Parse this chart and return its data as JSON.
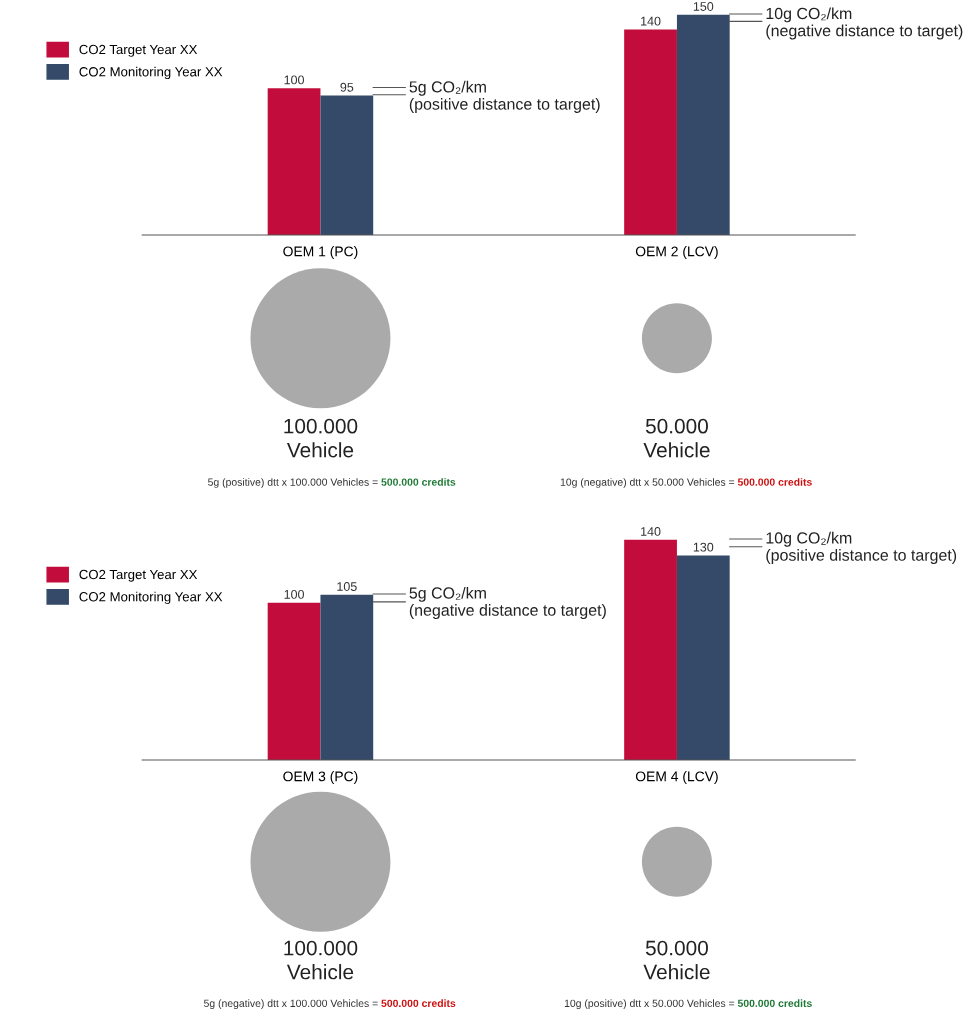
{
  "chart_data": [
    {
      "type": "bar",
      "categories": [
        "OEM 1 (PC)",
        "OEM 2 (LCV)"
      ],
      "series": [
        {
          "name": "CO2 Target Year XX",
          "color": "#c20c3b",
          "values": [
            100,
            140
          ]
        },
        {
          "name": "CO2 Monitoring Year XX",
          "color": "#354a69",
          "values": [
            95,
            150
          ]
        }
      ],
      "tick_labels": "x",
      "data_labels": true,
      "legend": "top left",
      "annotations": [
        "5g CO₂/km\n(positive distance to target)",
        "10g CO₂/km\n(negative distance to target)"
      ]
    },
    {
      "type": "other",
      "categories": [
        "100.000\nVehicle",
        "50.000\nVehicle"
      ],
      "annotations": [
        "5g (positive) dtt x 100.000 Vehicles = ",
        "500.000 credits",
        "10g (negative) dtt x 50.000 Vehicles = ",
        "500.000 credits"
      ]
    },
    {
      "type": "bar",
      "categories": [
        "OEM 3 (PC)",
        "OEM 4 (LCV)"
      ],
      "series": [
        {
          "name": "CO2 Target Year XX",
          "color": "#c20c3b",
          "values": [
            100,
            140
          ]
        },
        {
          "name": "CO2 Monitoring Year XX",
          "color": "#354a69",
          "values": [
            105,
            130
          ]
        }
      ],
      "tick_labels": "x",
      "data_labels": true,
      "legend": "top left",
      "annotations": [
        "5g CO₂/km\n(negative distance to target)",
        "10g CO₂/km\n(positive distance to target)"
      ]
    },
    {
      "type": "other",
      "categories": [
        "100.000\nVehicle",
        "50.000\nVehicle"
      ],
      "annotations": [
        "5g (negative) dtt x 100.000 Vehicles = ",
        "500.000 credits",
        "10g (positive) dtt x 50.000 Vehicles = ",
        "500.000 credits"
      ]
    }
  ]
}
